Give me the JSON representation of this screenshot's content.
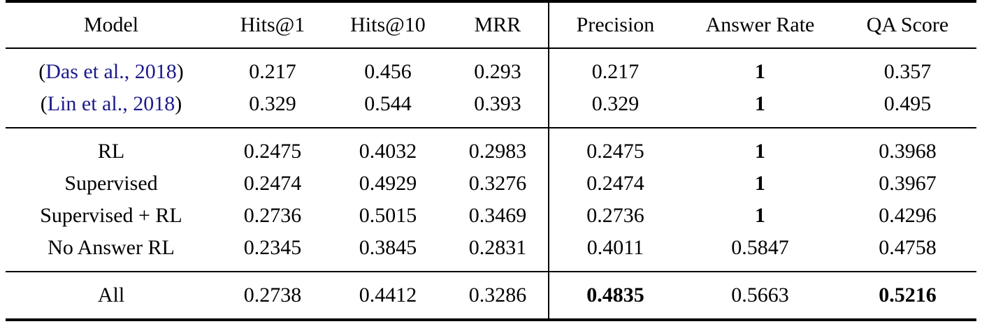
{
  "colors": {
    "text": "#000000",
    "rule": "#000000",
    "citation_link": "#1b1b8c",
    "background": "#ffffff"
  },
  "table": {
    "columns": [
      {
        "key": "model",
        "label": "Model",
        "width": "21.74%",
        "divider": false
      },
      {
        "key": "hits1",
        "label": "Hits@1",
        "width": "11.52%",
        "divider": false
      },
      {
        "key": "hits10",
        "label": "Hits@10",
        "width": "12.24%",
        "divider": false
      },
      {
        "key": "mrr",
        "label": "MRR",
        "width": "10.44%",
        "divider": false
      },
      {
        "key": "precision",
        "label": "Precision",
        "width": "13.68%",
        "divider": true
      },
      {
        "key": "answer_rate",
        "label": "Answer Rate",
        "width": "16.20%",
        "divider": false
      },
      {
        "key": "qa_score",
        "label": "QA Score",
        "width": "14.18%",
        "divider": false
      }
    ],
    "groups": [
      {
        "name": "baseline-models",
        "rows": [
          {
            "model": {
              "prefix": "(",
              "citation": "Das et al., 2018",
              "suffix": ")"
            },
            "values": [
              {
                "text": "0.217"
              },
              {
                "text": "0.456"
              },
              {
                "text": "0.293"
              },
              {
                "text": "0.217"
              },
              {
                "text": "1",
                "bold": true
              },
              {
                "text": "0.357"
              }
            ]
          },
          {
            "model": {
              "prefix": "(",
              "citation": "Lin et al., 2018",
              "suffix": ")"
            },
            "values": [
              {
                "text": "0.329"
              },
              {
                "text": "0.544"
              },
              {
                "text": "0.393"
              },
              {
                "text": "0.329"
              },
              {
                "text": "1",
                "bold": true
              },
              {
                "text": "0.495"
              }
            ]
          }
        ]
      },
      {
        "name": "proposed-models",
        "rows": [
          {
            "model": {
              "text": "RL"
            },
            "values": [
              {
                "text": "0.2475"
              },
              {
                "text": "0.4032"
              },
              {
                "text": "0.2983"
              },
              {
                "text": "0.2475"
              },
              {
                "text": "1",
                "bold": true
              },
              {
                "text": "0.3968"
              }
            ]
          },
          {
            "model": {
              "text": "Supervised"
            },
            "values": [
              {
                "text": "0.2474"
              },
              {
                "text": "0.4929"
              },
              {
                "text": "0.3276"
              },
              {
                "text": "0.2474"
              },
              {
                "text": "1",
                "bold": true
              },
              {
                "text": "0.3967"
              }
            ]
          },
          {
            "model": {
              "text": "Supervised + RL"
            },
            "values": [
              {
                "text": "0.2736"
              },
              {
                "text": "0.5015"
              },
              {
                "text": "0.3469"
              },
              {
                "text": "0.2736"
              },
              {
                "text": "1",
                "bold": true
              },
              {
                "text": "0.4296"
              }
            ]
          },
          {
            "model": {
              "text": "No Answer RL"
            },
            "values": [
              {
                "text": "0.2345"
              },
              {
                "text": "0.3845"
              },
              {
                "text": "0.2831"
              },
              {
                "text": "0.4011"
              },
              {
                "text": "0.5847"
              },
              {
                "text": "0.4758"
              }
            ]
          }
        ]
      },
      {
        "name": "combined-model",
        "rows": [
          {
            "model": {
              "text": "All"
            },
            "values": [
              {
                "text": "0.2738"
              },
              {
                "text": "0.4412"
              },
              {
                "text": "0.3286"
              },
              {
                "text": "0.4835",
                "bold": true
              },
              {
                "text": "0.5663"
              },
              {
                "text": "0.5216",
                "bold": true
              }
            ]
          }
        ]
      }
    ]
  }
}
